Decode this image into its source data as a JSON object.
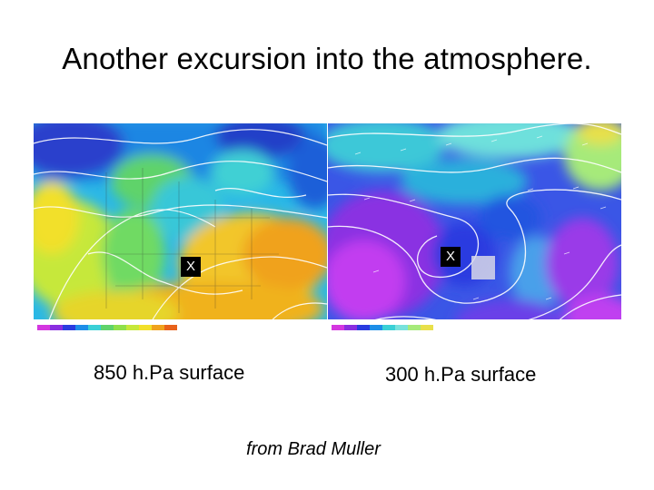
{
  "slide": {
    "title": "Another excursion into the atmosphere.",
    "credit": "from Brad Muller"
  },
  "panels": [
    {
      "label": "850 h.Pa surface",
      "marker": "X"
    },
    {
      "label": "300 h.Pa surface",
      "marker": "X"
    }
  ],
  "colors": {
    "map850": [
      "#2233cc",
      "#1d8ee8",
      "#3ad0d6",
      "#5fd36a",
      "#c6e83a",
      "#f2e02a",
      "#f0a21c"
    ],
    "map300": [
      "#2a3be0",
      "#8a2ee0",
      "#c23cf0",
      "#4a74ee",
      "#28c2d8",
      "#78e2dc"
    ]
  }
}
